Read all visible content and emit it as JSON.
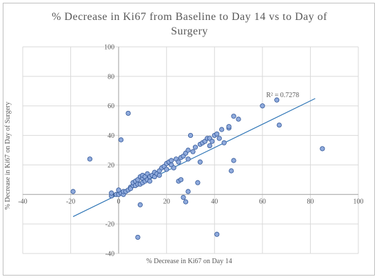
{
  "chart_data": {
    "type": "scatter",
    "title": "% Decrease in Ki67 from Baseline to Day 14 vs to Day of Surgery",
    "title_lines": [
      "% Decrease in Ki67 from Baseline to Day 14 vs to Day of",
      "Surgery"
    ],
    "xlabel": "% Decrease in Ki67 on Day 14",
    "ylabel": "% Decrease in Ki67 on Day of Surgery",
    "xlim": [
      -40,
      100
    ],
    "ylim": [
      -40,
      100
    ],
    "x_ticks": [
      -40,
      -20,
      0,
      20,
      40,
      60,
      80,
      100
    ],
    "y_ticks": [
      -40,
      -20,
      0,
      20,
      40,
      60,
      80,
      100
    ],
    "x_tick_labels": [
      "-40",
      "-20",
      "0",
      "20",
      "40",
      "60",
      "80",
      "100"
    ],
    "y_tick_labels": [
      "-40",
      "-20",
      "0",
      "20",
      "40",
      "60",
      "80",
      "100"
    ],
    "grid": true,
    "marker_color": "#8faadc",
    "marker_edge_color": "#2f5597",
    "trendline_color": "#2e75b6",
    "trendline": {
      "type": "linear",
      "x": [
        -19,
        82
      ],
      "y": [
        -15,
        65
      ],
      "r2_label": "R² = 0.7278"
    },
    "points": [
      [
        -19,
        2
      ],
      [
        -12,
        24
      ],
      [
        -3,
        -1
      ],
      [
        -3,
        1
      ],
      [
        -1,
        0
      ],
      [
        0,
        0
      ],
      [
        1,
        1
      ],
      [
        0,
        3
      ],
      [
        1,
        37
      ],
      [
        2,
        0
      ],
      [
        2,
        2
      ],
      [
        3,
        2
      ],
      [
        4,
        55
      ],
      [
        4,
        3
      ],
      [
        5,
        5
      ],
      [
        5,
        4
      ],
      [
        6,
        6
      ],
      [
        6,
        8
      ],
      [
        7,
        6
      ],
      [
        7,
        9
      ],
      [
        8,
        7
      ],
      [
        8,
        10
      ],
      [
        9,
        -7
      ],
      [
        9,
        7
      ],
      [
        9,
        12
      ],
      [
        10,
        8
      ],
      [
        10,
        11
      ],
      [
        10,
        13
      ],
      [
        11,
        9
      ],
      [
        11,
        12
      ],
      [
        12,
        10
      ],
      [
        12,
        14
      ],
      [
        13,
        9
      ],
      [
        13,
        12
      ],
      [
        14,
        13
      ],
      [
        15,
        15
      ],
      [
        15,
        12
      ],
      [
        16,
        14
      ],
      [
        17,
        13
      ],
      [
        17,
        16
      ],
      [
        18,
        18
      ],
      [
        19,
        19
      ],
      [
        20,
        17
      ],
      [
        20,
        21
      ],
      [
        21,
        22
      ],
      [
        22,
        20
      ],
      [
        22,
        23
      ],
      [
        23,
        18
      ],
      [
        24,
        24
      ],
      [
        25,
        22
      ],
      [
        25,
        9
      ],
      [
        26,
        10
      ],
      [
        26,
        25
      ],
      [
        27,
        26
      ],
      [
        27,
        -2
      ],
      [
        28,
        28
      ],
      [
        28,
        -5
      ],
      [
        29,
        24
      ],
      [
        29,
        30
      ],
      [
        29,
        2
      ],
      [
        30,
        40
      ],
      [
        31,
        29
      ],
      [
        32,
        32
      ],
      [
        33,
        8
      ],
      [
        34,
        22
      ],
      [
        34,
        34
      ],
      [
        35,
        35
      ],
      [
        36,
        36
      ],
      [
        37,
        38
      ],
      [
        38,
        38
      ],
      [
        38,
        33
      ],
      [
        39,
        36
      ],
      [
        40,
        40
      ],
      [
        41,
        41
      ],
      [
        42,
        38
      ],
      [
        43,
        44
      ],
      [
        44,
        35
      ],
      [
        46,
        45
      ],
      [
        46,
        46
      ],
      [
        47,
        16
      ],
      [
        48,
        23
      ],
      [
        48,
        53
      ],
      [
        50,
        51
      ],
      [
        8,
        -29
      ],
      [
        41,
        -27
      ],
      [
        60,
        60
      ],
      [
        66,
        64
      ],
      [
        67,
        47
      ],
      [
        85,
        31
      ]
    ]
  }
}
